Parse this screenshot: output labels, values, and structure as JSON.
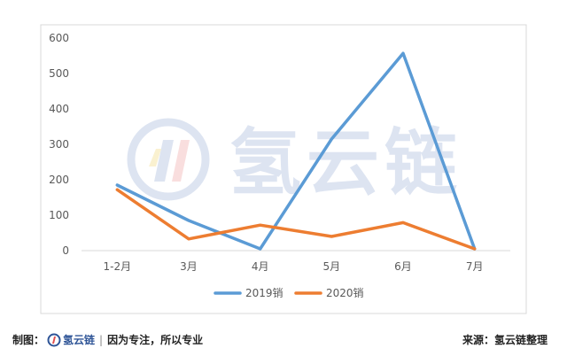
{
  "chart_data": {
    "type": "line",
    "categories": [
      "1-2月",
      "3月",
      "4月",
      "5月",
      "6月",
      "7月"
    ],
    "series": [
      {
        "name": "2019销",
        "color": "#5b9bd5",
        "values": [
          185,
          85,
          5,
          315,
          557,
          5
        ]
      },
      {
        "name": "2020销",
        "color": "#ed7d31",
        "values": [
          172,
          33,
          72,
          40,
          79,
          5
        ]
      }
    ],
    "y_ticks": [
      0,
      100,
      200,
      300,
      400,
      500,
      600
    ],
    "ylim": [
      0,
      600
    ],
    "grid": false,
    "legend": "bottom-center"
  },
  "watermark": {
    "text": "氢云链",
    "icon": "hydrogen-chain-logo-icon"
  },
  "footer": {
    "made_by_label": "制图：",
    "logo_text": "氢云链",
    "slogan": "因为专注，所以专业",
    "source": "来源：氢云链整理"
  }
}
